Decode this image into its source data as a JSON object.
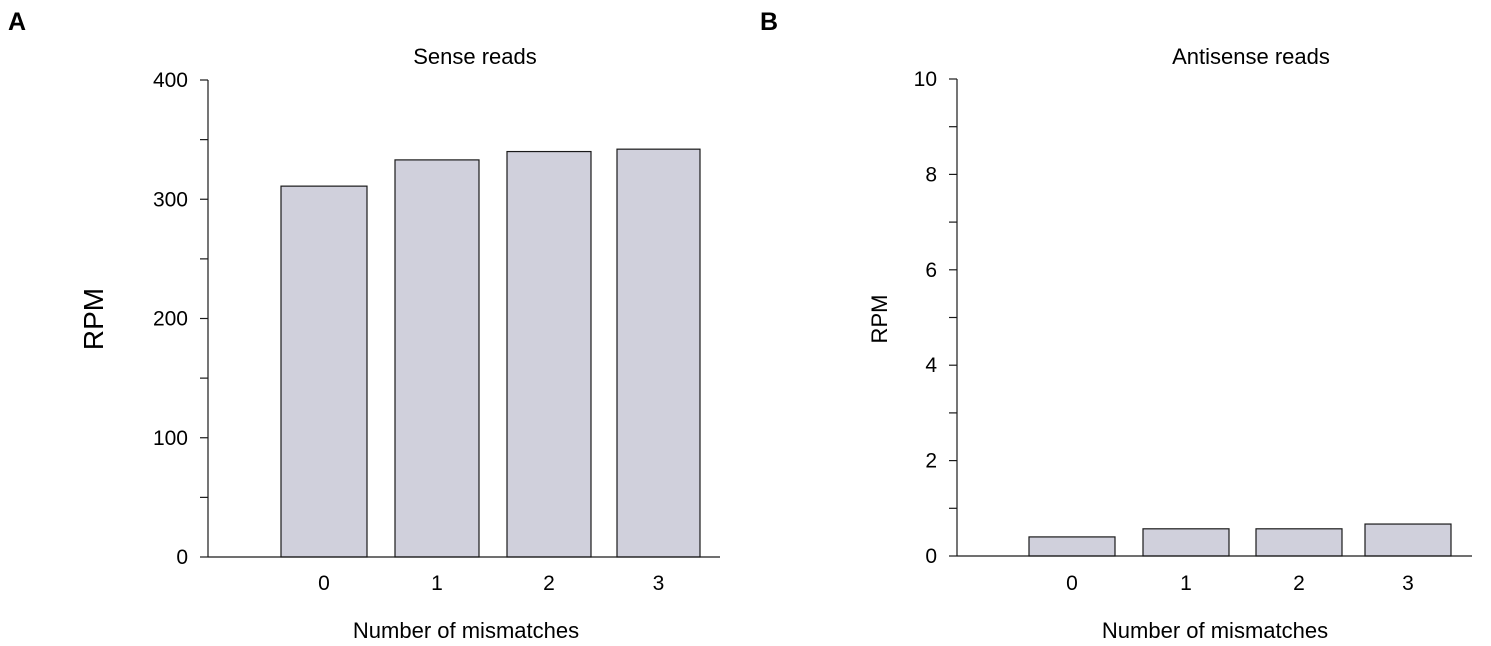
{
  "panels": [
    {
      "letter": "A"
    },
    {
      "letter": "B"
    }
  ],
  "colors": {
    "bar_fill": "#d0d0dc",
    "bar_stroke": "#1a1a1a",
    "axis": "#1a1a1a"
  },
  "chart_data": [
    {
      "type": "bar",
      "title": "Sense reads",
      "xlabel": "Number of mismatches",
      "ylabel": "RPM",
      "categories": [
        "0",
        "1",
        "2",
        "3"
      ],
      "values": [
        311,
        333,
        340,
        342
      ],
      "ylim": [
        0,
        400
      ],
      "yticks_labeled": [
        0,
        100,
        200,
        300,
        400
      ],
      "yticks_minor_step": 50,
      "grid": false,
      "legend": "none"
    },
    {
      "type": "bar",
      "title": "Antisense reads",
      "xlabel": "Number of mismatches",
      "ylabel": "RPM",
      "categories": [
        "0",
        "1",
        "2",
        "3"
      ],
      "values": [
        0.4,
        0.57,
        0.57,
        0.67
      ],
      "ylim": [
        0,
        10
      ],
      "yticks_labeled": [
        0,
        2,
        4,
        6,
        8,
        10
      ],
      "yticks_minor_step": 1,
      "grid": false,
      "legend": "none"
    }
  ]
}
